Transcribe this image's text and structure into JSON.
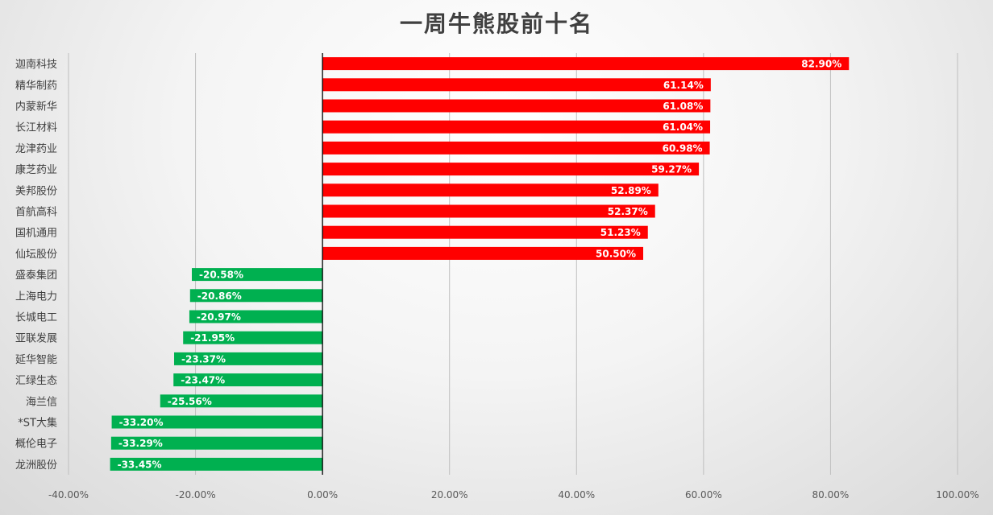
{
  "chart_data": {
    "type": "bar",
    "orientation": "horizontal",
    "title": "一周牛熊股前十名",
    "categories": [
      "迦南科技",
      "精华制药",
      "内蒙新华",
      "长江材料",
      "龙津药业",
      "康芝药业",
      "美邦股份",
      "首航高科",
      "国机通用",
      "仙坛股份",
      "盛泰集团",
      "上海电力",
      "长城电工",
      "亚联发展",
      "延华智能",
      "汇绿生态",
      "海兰信",
      "*ST大集",
      "概伦电子",
      "龙洲股份"
    ],
    "values": [
      82.9,
      61.14,
      61.08,
      61.04,
      60.98,
      59.27,
      52.89,
      52.37,
      51.23,
      50.5,
      -20.58,
      -20.86,
      -20.97,
      -21.95,
      -23.37,
      -23.47,
      -25.56,
      -33.2,
      -33.29,
      -33.45
    ],
    "data_labels": [
      "82.90%",
      "61.14%",
      "61.08%",
      "61.04%",
      "60.98%",
      "59.27%",
      "52.89%",
      "52.37%",
      "51.23%",
      "50.50%",
      "-20.58%",
      "-20.86%",
      "-20.97%",
      "-21.95%",
      "-23.37%",
      "-23.47%",
      "-25.56%",
      "-33.20%",
      "-33.29%",
      "-33.45%"
    ],
    "xlim": [
      -40,
      100
    ],
    "x_ticks": [
      -40,
      -20,
      0,
      20,
      40,
      60,
      80,
      100
    ],
    "x_tick_labels": [
      "-40.00%",
      "-20.00%",
      "0.00%",
      "20.00%",
      "40.00%",
      "60.00%",
      "80.00%",
      "100.00%"
    ],
    "grid": "vertical",
    "colors": {
      "positive": "#ff0000",
      "negative": "#00b050",
      "grid": "#bfbfbf",
      "axis": "#000000"
    }
  }
}
